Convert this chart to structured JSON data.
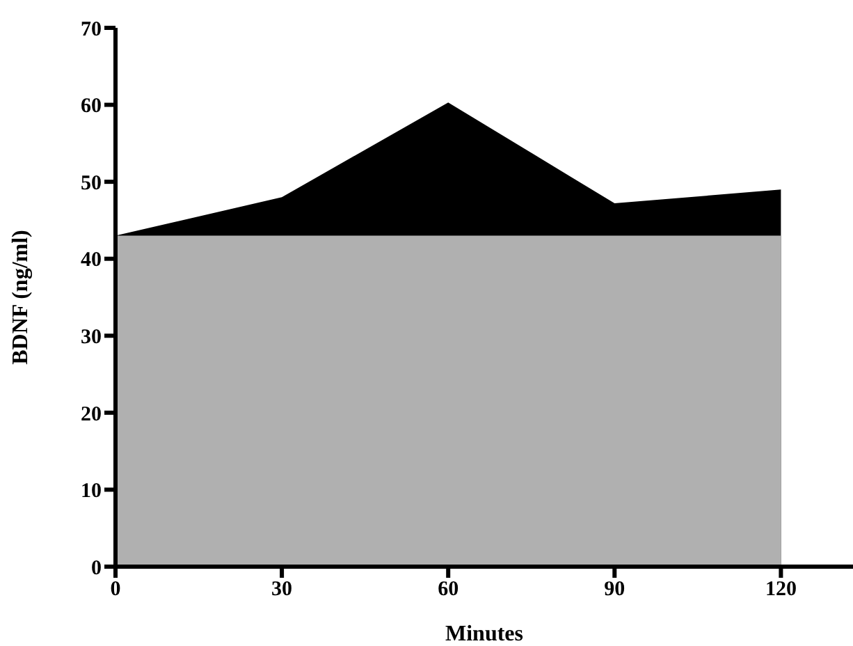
{
  "chart_data": {
    "type": "area",
    "xlabel": "Minutes",
    "ylabel": "BDNF (ng/ml)",
    "x": [
      0,
      30,
      60,
      90,
      120
    ],
    "series": [
      {
        "color": "#000000",
        "values": [
          43,
          48,
          60.3,
          47.2,
          49
        ]
      },
      {
        "color": "#b0b0b0",
        "values": [
          43,
          43,
          43,
          43,
          43
        ]
      }
    ],
    "xlim": [
      0,
      133
    ],
    "xticks": [
      0,
      30,
      60,
      90,
      120
    ],
    "ylim": [
      0,
      70
    ],
    "yticks": [
      0,
      10,
      20,
      30,
      40,
      50,
      60,
      70
    ],
    "grid": false,
    "legend": false
  }
}
